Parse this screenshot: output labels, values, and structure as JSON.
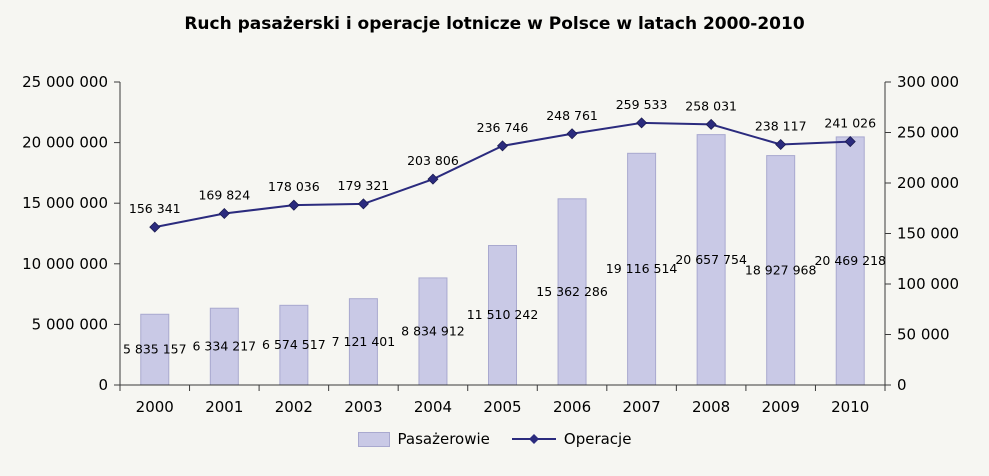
{
  "chart_data": {
    "type": "bar+line",
    "title": "Ruch pasażerski i operacje lotnicze w Polsce w latach 2000-2010",
    "categories": [
      "2000",
      "2001",
      "2002",
      "2003",
      "2004",
      "2005",
      "2006",
      "2007",
      "2008",
      "2009",
      "2010"
    ],
    "series": [
      {
        "name": "Pasażerowie",
        "type": "bar",
        "axis": "left",
        "color": "#c9c9e6",
        "border_color": "#a9a9cf",
        "values": [
          5835157,
          6334217,
          6574517,
          7121401,
          8834912,
          11510242,
          15362286,
          19116514,
          20657754,
          18927968,
          20469218
        ],
        "value_labels": [
          "5 835 157",
          "6 334 217",
          "6 574 517",
          "7 121 401",
          "8 834 912",
          "11 510 242",
          "15 362 286",
          "19 116 514",
          "20 657 754",
          "18 927 968",
          "20 469 218"
        ]
      },
      {
        "name": "Operacje",
        "type": "line",
        "axis": "right",
        "color": "#2b2b7e",
        "values": [
          156341,
          169824,
          178036,
          179321,
          203806,
          236746,
          248761,
          259533,
          258031,
          238117,
          241026
        ],
        "value_labels": [
          "156 341",
          "169 824",
          "178 036",
          "179 321",
          "203 806",
          "236 746",
          "248 761",
          "259 533",
          "258 031",
          "238 117",
          "241 026"
        ]
      }
    ],
    "left_axis": {
      "min": 0,
      "max": 25000000,
      "step": 5000000,
      "tick_labels": [
        "0",
        "5 000 000",
        "10 000 000",
        "15 000 000",
        "20 000 000",
        "25 000 000"
      ]
    },
    "right_axis": {
      "min": 0,
      "max": 300000,
      "step": 50000,
      "tick_labels": [
        "0",
        "50 000",
        "100 000",
        "150 000",
        "200 000",
        "250 000",
        "300 000"
      ]
    },
    "grid": false,
    "data_labels": true,
    "legend_position": "bottom",
    "axis_color": "#3a3a3a",
    "text_color": "#000000"
  }
}
